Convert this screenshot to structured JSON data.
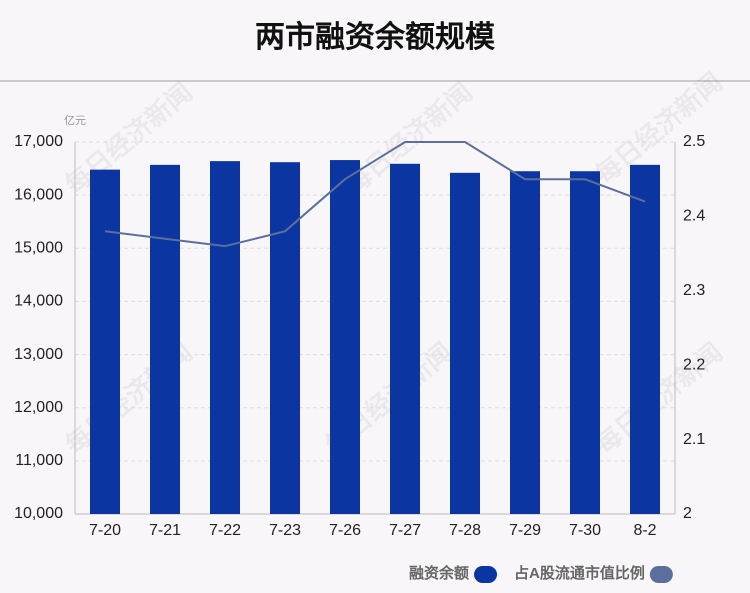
{
  "chart_data": {
    "type": "bar_line",
    "title": "两市融资余额规模",
    "unit_label": "亿元",
    "watermark": "每日经济新闻",
    "categories": [
      "7-20",
      "7-21",
      "7-22",
      "7-23",
      "7-26",
      "7-27",
      "7-28",
      "7-29",
      "7-30",
      "8-2"
    ],
    "series": [
      {
        "name": "融资余额",
        "type": "bar",
        "color": "#0b35a0",
        "values": [
          16480,
          16570,
          16640,
          16620,
          16660,
          16590,
          16420,
          16450,
          16450,
          16570
        ]
      },
      {
        "name": "占A股流通市值比例",
        "type": "line",
        "axis": "y2",
        "color": "#5b6f9c",
        "values": [
          2.38,
          2.37,
          2.36,
          2.38,
          2.45,
          2.5,
          2.5,
          2.45,
          2.45,
          2.42
        ]
      }
    ],
    "ylim": [
      10000,
      17000
    ],
    "yticks": [
      {
        "value": 10000,
        "label": "10,000"
      },
      {
        "value": 11000,
        "label": "11,000"
      },
      {
        "value": 12000,
        "label": "12,000"
      },
      {
        "value": 13000,
        "label": "13,000"
      },
      {
        "value": 14000,
        "label": "14,000"
      },
      {
        "value": 15000,
        "label": "15,000"
      },
      {
        "value": 16000,
        "label": "16,000"
      },
      {
        "value": 17000,
        "label": "17,000"
      }
    ],
    "y2lim": [
      2,
      2.5
    ],
    "y2ticks": [
      2,
      2.1,
      2.2,
      2.3,
      2.4,
      2.5
    ],
    "grid": true
  }
}
